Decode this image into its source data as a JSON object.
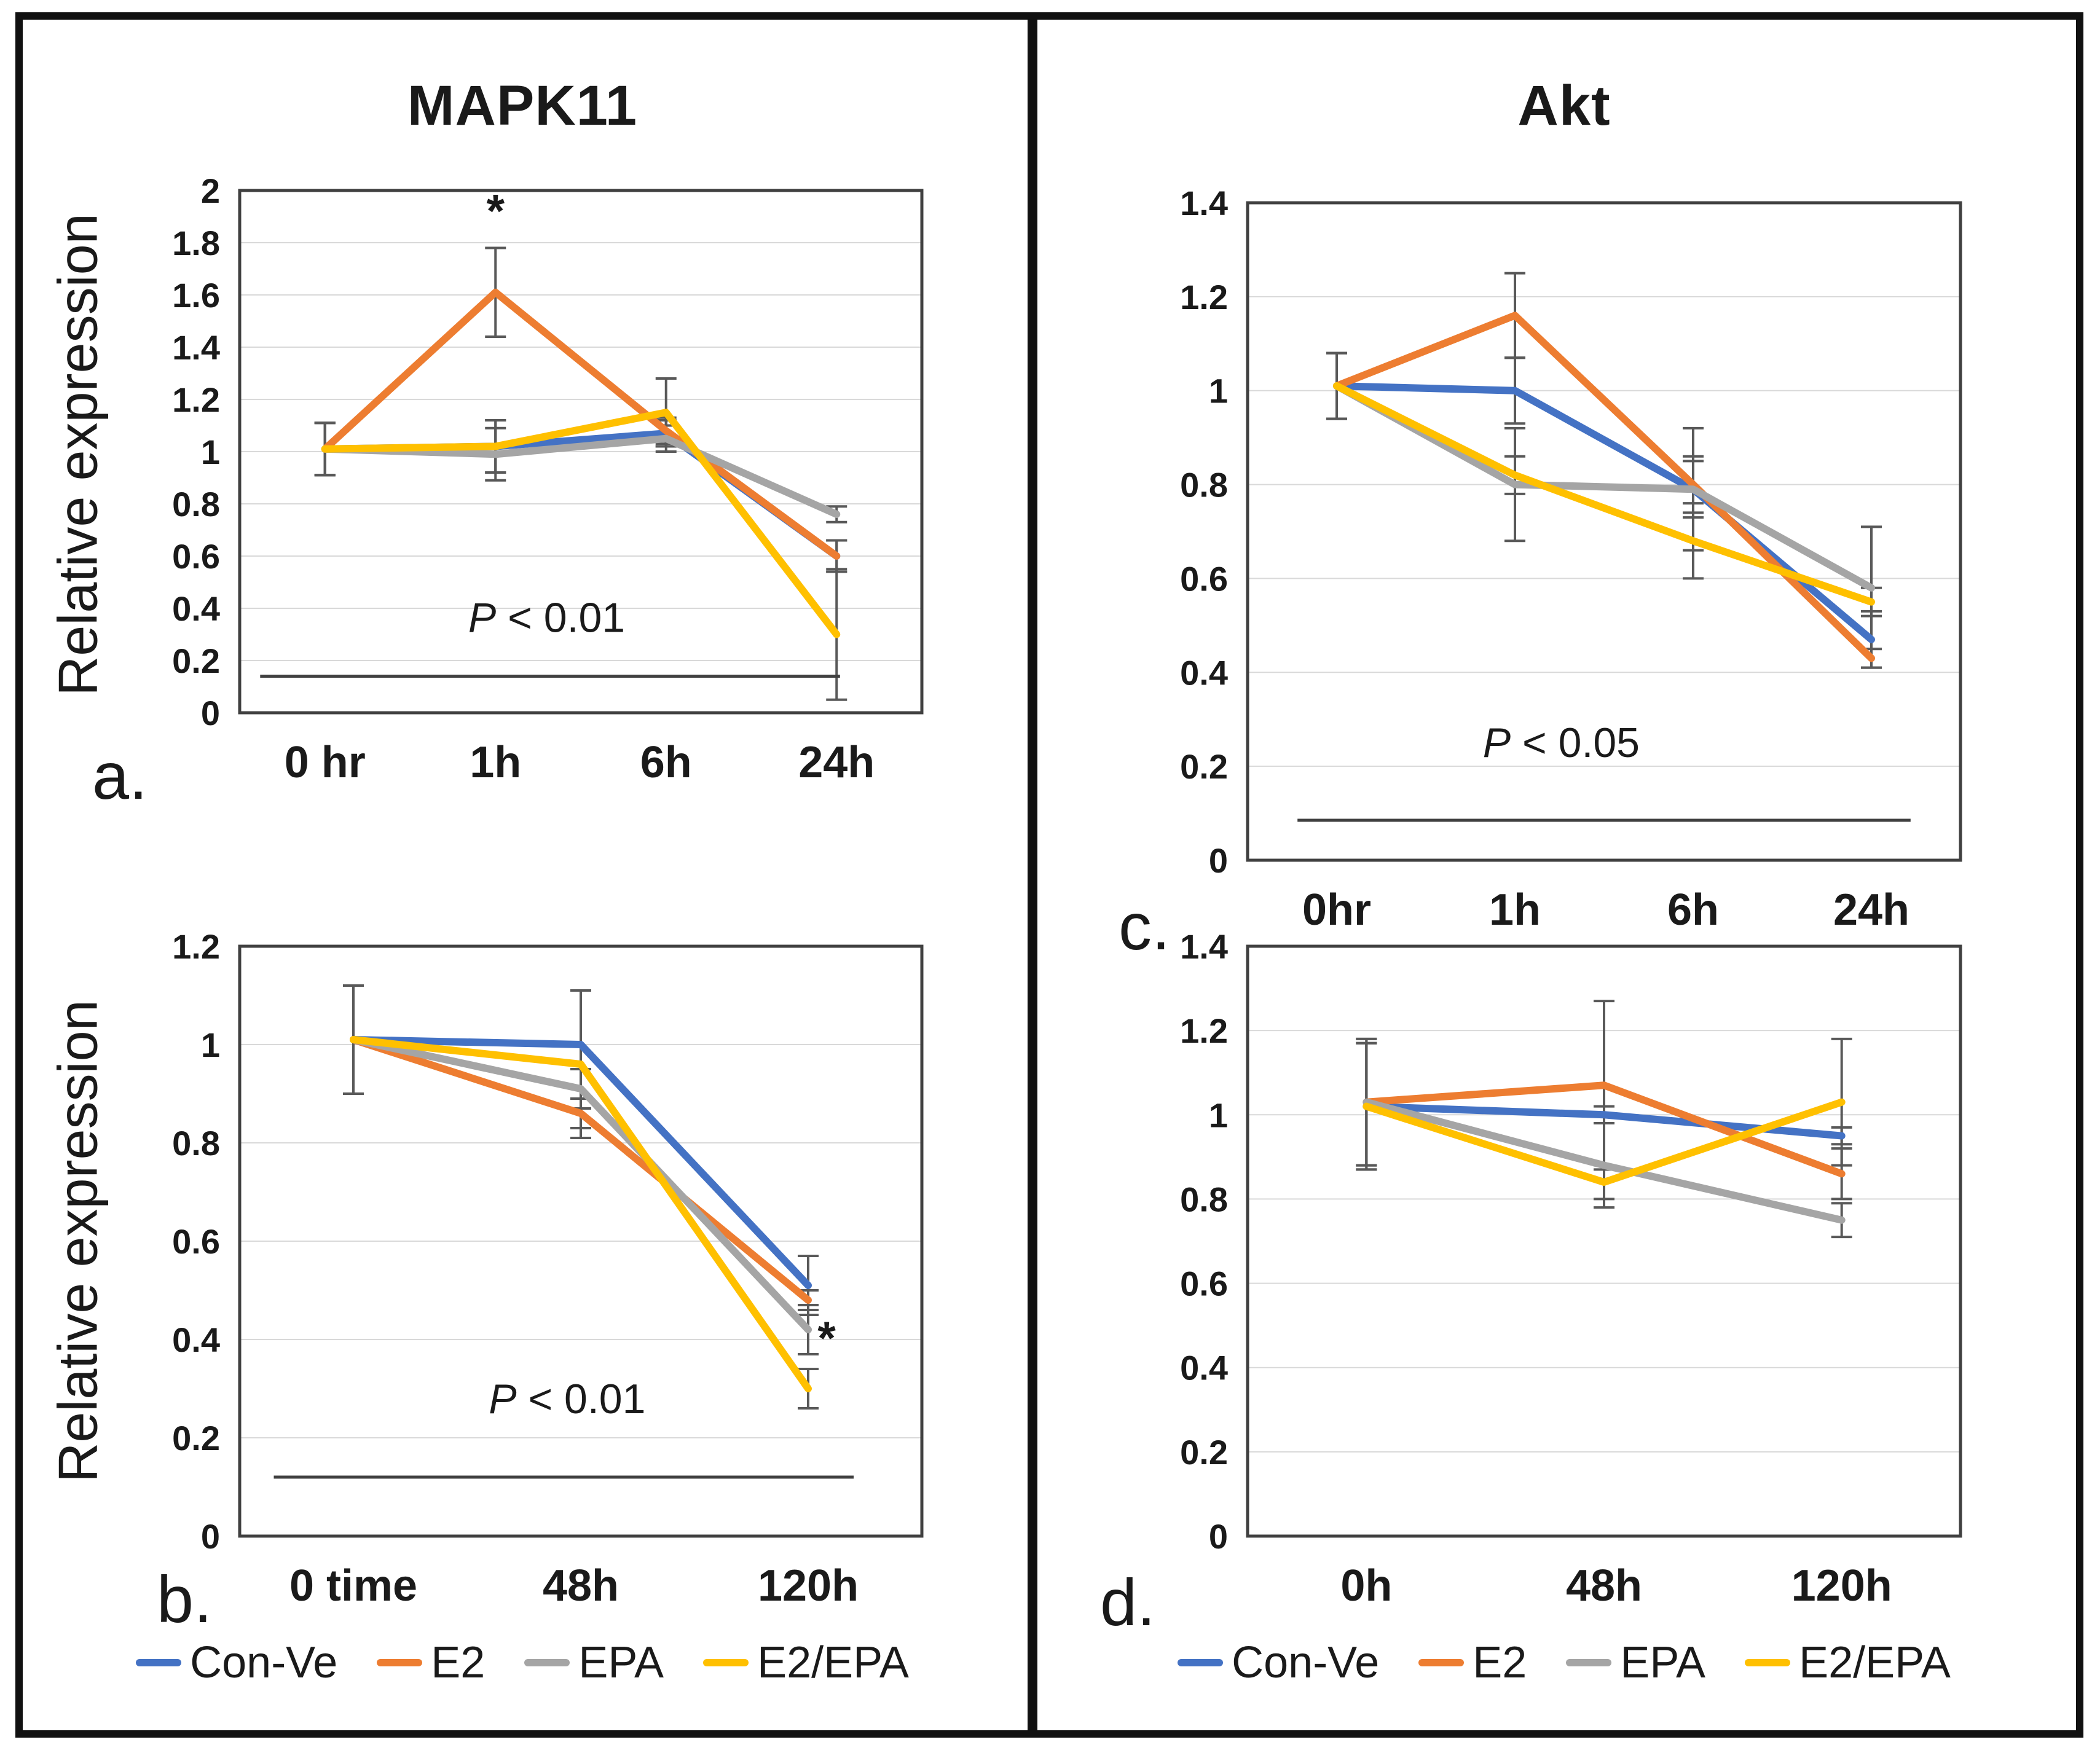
{
  "colors": {
    "blue": "#4472C4",
    "orange": "#ED7D31",
    "gray": "#A5A5A5",
    "yellow": "#FFC000",
    "gridline": "#D9D9D9",
    "plot_border": "#404040",
    "error_bar": "#595959",
    "sig_line": "#404040",
    "frame": "#111111"
  },
  "legend": {
    "items": [
      {
        "label": "Con-Ve",
        "color": "#4472C4"
      },
      {
        "label": "E2",
        "color": "#ED7D31"
      },
      {
        "label": "EPA",
        "color": "#A5A5A5"
      },
      {
        "label": "E2/EPA",
        "color": "#FFC000"
      }
    ]
  },
  "chart_data": [
    {
      "id": "a",
      "type": "line",
      "title": "MAPK11",
      "panel_label": "a.",
      "ylabel": "Relative expression",
      "ylim": [
        0,
        2
      ],
      "ystep": 0.2,
      "grid": true,
      "legend_position": "none",
      "categories": [
        "0 hr",
        "1h",
        "6h",
        "24h"
      ],
      "series": [
        {
          "name": "Con-Ve",
          "color": "#4472C4",
          "values": [
            1.01,
            1.02,
            1.07,
            0.6
          ],
          "err": [
            0.1,
            0.1,
            0.05,
            0.06
          ]
        },
        {
          "name": "E2",
          "color": "#ED7D31",
          "values": [
            1.01,
            1.61,
            1.08,
            0.6
          ],
          "err": [
            0.1,
            0.17,
            0.05,
            0.06
          ]
        },
        {
          "name": "EPA",
          "color": "#A5A5A5",
          "values": [
            1.01,
            0.99,
            1.05,
            0.76
          ],
          "err": [
            0.1,
            0.1,
            0.05,
            0.03
          ]
        },
        {
          "name": "E2/EPA",
          "color": "#FFC000",
          "values": [
            1.01,
            1.02,
            1.15,
            0.3
          ],
          "err": [
            0.1,
            0.1,
            0.13,
            0.25
          ]
        }
      ],
      "significance": {
        "label": "P < 0.01",
        "text_y": 0.31,
        "line_y": 0.14,
        "x0": 0.03,
        "x1": 0.88,
        "text_x": 0.45
      },
      "stars": [
        {
          "category_index": 1,
          "value_y": 1.86,
          "dx": 0,
          "symbol": "*"
        }
      ]
    },
    {
      "id": "b",
      "type": "line",
      "panel_label": "b.",
      "ylabel": "Relative expression",
      "ylim": [
        0,
        1.2
      ],
      "ystep": 0.2,
      "grid": true,
      "legend_position": "bottom",
      "categories": [
        "0 time",
        "48h",
        "120h"
      ],
      "series": [
        {
          "name": "Con-Ve",
          "color": "#4472C4",
          "values": [
            1.01,
            1.0,
            0.51
          ],
          "err": [
            0.11,
            0.11,
            0.06
          ]
        },
        {
          "name": "E2",
          "color": "#ED7D31",
          "values": [
            1.01,
            0.86,
            0.48
          ],
          "err": [
            0.11,
            0.03,
            0.02
          ]
        },
        {
          "name": "EPA",
          "color": "#A5A5A5",
          "values": [
            1.01,
            0.91,
            0.42
          ],
          "err": [
            0.11,
            0.04,
            0.05
          ]
        },
        {
          "name": "E2/EPA",
          "color": "#FFC000",
          "values": [
            1.01,
            0.96,
            0.3
          ],
          "err": [
            0.11,
            0.15,
            0.04
          ]
        }
      ],
      "significance": {
        "label": "P < 0.01",
        "text_y": 0.25,
        "line_y": 0.12,
        "x0": 0.05,
        "x1": 0.9,
        "text_x": 0.48
      },
      "stars": [
        {
          "category_index": 2,
          "value_y": 0.37,
          "dx": 30,
          "symbol": "*"
        }
      ]
    },
    {
      "id": "c",
      "type": "line",
      "title": "Akt",
      "panel_label": "c.",
      "ylabel": null,
      "ylim": [
        0,
        1.4
      ],
      "ystep": 0.2,
      "grid": true,
      "legend_position": "none",
      "categories": [
        "0hr",
        "1h",
        "6h",
        "24h"
      ],
      "series": [
        {
          "name": "Con-Ve",
          "color": "#4472C4",
          "values": [
            1.01,
            1.0,
            0.79,
            0.47
          ],
          "err": [
            0.07,
            0.07,
            0.06,
            0.06
          ]
        },
        {
          "name": "E2",
          "color": "#ED7D31",
          "values": [
            1.01,
            1.16,
            0.8,
            0.43
          ],
          "err": [
            0.07,
            0.09,
            0.06,
            0.02
          ]
        },
        {
          "name": "EPA",
          "color": "#A5A5A5",
          "values": [
            1.01,
            0.8,
            0.79,
            0.58
          ],
          "err": [
            0.07,
            0.12,
            0.13,
            0.13
          ]
        },
        {
          "name": "E2/EPA",
          "color": "#FFC000",
          "values": [
            1.01,
            0.82,
            0.68,
            0.55
          ],
          "err": [
            0.07,
            0.04,
            0.08,
            0.03
          ]
        }
      ],
      "significance": {
        "label": "P < 0.05",
        "text_y": 0.22,
        "line_y": 0.085,
        "x0": 0.07,
        "x1": 0.93,
        "text_x": 0.44
      },
      "stars": []
    },
    {
      "id": "d",
      "type": "line",
      "panel_label": "d.",
      "ylabel": null,
      "ylim": [
        0,
        1.4
      ],
      "ystep": 0.2,
      "grid": true,
      "legend_position": "bottom",
      "categories": [
        "0h",
        "48h",
        "120h"
      ],
      "series": [
        {
          "name": "Con-Ve",
          "color": "#4472C4",
          "values": [
            1.02,
            1.0,
            0.95
          ],
          "err": [
            0.15,
            0.02,
            0.02
          ]
        },
        {
          "name": "E2",
          "color": "#ED7D31",
          "values": [
            1.03,
            1.07,
            0.86
          ],
          "err": [
            0.15,
            0.2,
            0.06
          ]
        },
        {
          "name": "EPA",
          "color": "#A5A5A5",
          "values": [
            1.03,
            0.88,
            0.75
          ],
          "err": [
            0.15,
            0.1,
            0.04
          ]
        },
        {
          "name": "E2/EPA",
          "color": "#FFC000",
          "values": [
            1.02,
            0.84,
            1.03
          ],
          "err": [
            0.15,
            0.04,
            0.15
          ]
        }
      ],
      "significance": null,
      "stars": []
    }
  ]
}
